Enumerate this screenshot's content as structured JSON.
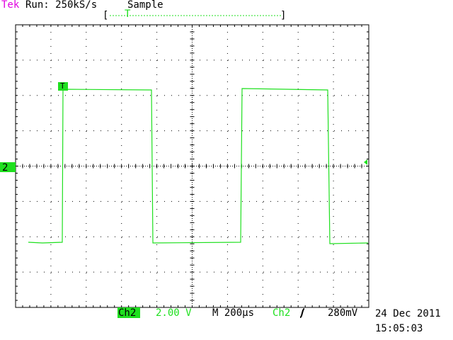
{
  "header": {
    "brand": "Tek",
    "status": "Run: 250kS/s",
    "mode": "Sample",
    "record_left": "[",
    "record_trigger": "T",
    "record_right": "]"
  },
  "screen": {
    "trigger_marker": "T",
    "channel_marker": "2"
  },
  "footer": {
    "channel": "Ch2",
    "volts_per_div": "2.00 V",
    "time_base": "M 200µs",
    "trigger_source": "Ch2",
    "trigger_level": "280mV",
    "date": "24 Dec 2011",
    "time": "15:05:03"
  }
}
